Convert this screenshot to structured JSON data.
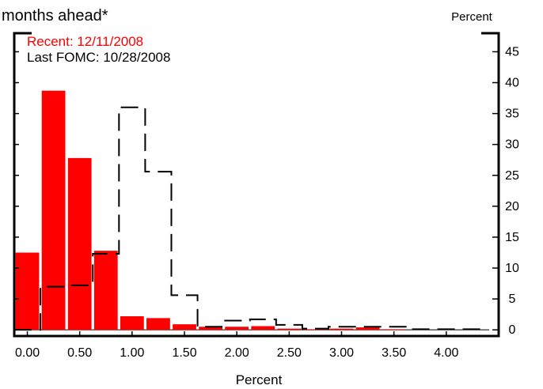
{
  "chart_data": {
    "type": "bar",
    "title": "months ahead*",
    "xlabel": "Percent",
    "ylabel": "Percent",
    "x_ticks": [
      "0.00",
      "0.50",
      "1.00",
      "1.50",
      "2.00",
      "2.50",
      "3.00",
      "3.50",
      "4.00"
    ],
    "y_ticks": [
      "0",
      "5",
      "10",
      "15",
      "20",
      "25",
      "30",
      "35",
      "40",
      "45"
    ],
    "xlim": [
      -0.125,
      4.5
    ],
    "ylim": [
      -1,
      48
    ],
    "bin_width": 0.25,
    "series": [
      {
        "name": "Recent: 12/11/2008",
        "style": "bar",
        "color": "#ff0000",
        "x": [
          0.0,
          0.25,
          0.5,
          0.75,
          1.0,
          1.25,
          1.5,
          1.75,
          2.0,
          2.25,
          2.5,
          2.75,
          3.0,
          3.25,
          3.5,
          3.75,
          4.0,
          4.25
        ],
        "values": [
          12.5,
          38.7,
          27.8,
          12.8,
          2.2,
          1.9,
          0.9,
          0.5,
          0.5,
          0.6,
          0.2,
          0.1,
          0.2,
          0.4,
          0.1,
          0.0,
          0.0,
          0.0
        ]
      },
      {
        "name": "Last FOMC: 10/28/2008",
        "style": "dashed-step",
        "color": "#000000",
        "x": [
          0.0,
          0.25,
          0.5,
          0.75,
          1.0,
          1.25,
          1.5,
          1.75,
          2.0,
          2.25,
          2.5,
          2.75,
          3.0,
          3.25,
          3.5,
          3.75,
          4.0,
          4.25
        ],
        "values": [
          0.0,
          7.0,
          7.2,
          12.3,
          36.0,
          25.6,
          5.6,
          0.5,
          1.5,
          1.7,
          0.8,
          0.2,
          0.5,
          0.5,
          0.5,
          0.1,
          0.1,
          0.1
        ]
      }
    ],
    "legend": "top-left",
    "grid": false
  }
}
